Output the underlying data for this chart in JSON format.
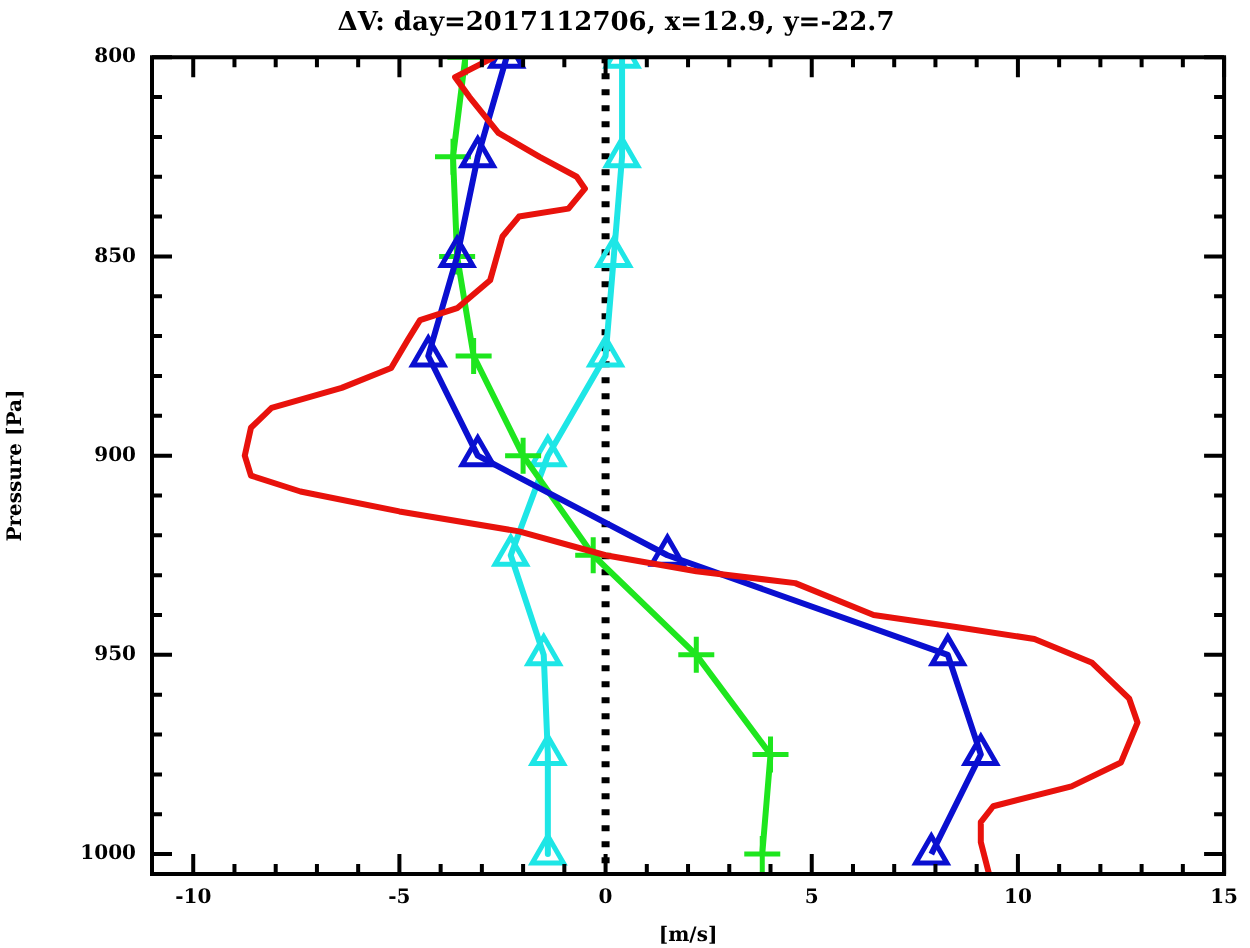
{
  "chart_data": {
    "type": "line",
    "title": "ΔV: day=2017112706, x=12.9, y=-22.7",
    "xlabel": "[m/s]",
    "ylabel": "Pressure [Pa]",
    "xlim": [
      -11,
      15
    ],
    "xticks": [
      {
        "value": -11,
        "label": null
      },
      -10,
      {
        "value": -9,
        "label": null
      },
      {
        "value": -8,
        "label": null
      },
      {
        "value": -7,
        "label": null
      },
      {
        "value": -6,
        "label": null
      },
      -5,
      {
        "value": -4,
        "label": null
      },
      {
        "value": -3,
        "label": null
      },
      {
        "value": -2,
        "label": null
      },
      {
        "value": -1,
        "label": null
      },
      0,
      {
        "value": 1,
        "label": null
      },
      {
        "value": 2,
        "label": null
      },
      {
        "value": 3,
        "label": null
      },
      {
        "value": 4,
        "label": null
      },
      5,
      {
        "value": 6,
        "label": null
      },
      {
        "value": 7,
        "label": null
      },
      {
        "value": 8,
        "label": null
      },
      {
        "value": 9,
        "label": null
      },
      10,
      {
        "value": 11,
        "label": null
      },
      {
        "value": 12,
        "label": null
      },
      {
        "value": 13,
        "label": null
      },
      {
        "value": 14,
        "label": null
      },
      15
    ],
    "ylim": [
      1005,
      800
    ],
    "yticks": [
      800,
      {
        "value": 810,
        "label": null
      },
      {
        "value": 820,
        "label": null
      },
      {
        "value": 830,
        "label": null
      },
      {
        "value": 840,
        "label": null
      },
      850,
      {
        "value": 860,
        "label": null
      },
      {
        "value": 870,
        "label": null
      },
      {
        "value": 880,
        "label": null
      },
      {
        "value": 890,
        "label": null
      },
      900,
      {
        "value": 910,
        "label": null
      },
      {
        "value": 920,
        "label": null
      },
      {
        "value": 930,
        "label": null
      },
      {
        "value": 940,
        "label": null
      },
      950,
      {
        "value": 960,
        "label": null
      },
      {
        "value": 970,
        "label": null
      },
      {
        "value": 980,
        "label": null
      },
      {
        "value": 990,
        "label": null
      },
      1000
    ],
    "grid": false,
    "legend": false,
    "line_style": "solid",
    "ref_lines": [
      {
        "axis": "x",
        "value": 0,
        "color": "#000000",
        "line_style": "dotted"
      }
    ],
    "series": [
      {
        "color": "#e8120c",
        "marker": "none",
        "x": [
          -2.7,
          -3.65,
          -3.3,
          -2.6,
          -1.6,
          -0.7,
          -0.5,
          -0.9,
          -2.1,
          -2.5,
          -2.8,
          -3.6,
          -4.5,
          -4.8,
          -5.2,
          -6.4,
          -8.1,
          -8.6,
          -8.75,
          -8.6,
          -7.4,
          -5.0,
          -2.1,
          0,
          2.2,
          4.6,
          6.5,
          8.5,
          10.4,
          11.8,
          12.7,
          12.9,
          12.5,
          11.3,
          9.4,
          9.1,
          9.1,
          9.3
        ],
        "values": [
          800,
          805,
          810,
          819,
          825,
          830,
          833,
          838,
          840,
          845,
          856,
          863,
          866,
          871,
          878,
          883,
          888,
          893,
          900,
          905,
          909,
          914,
          919,
          925,
          929,
          932,
          940,
          943,
          946,
          952,
          961,
          967,
          977,
          983,
          988,
          992,
          997,
          1005
        ]
      },
      {
        "color": "#0a0fd0",
        "marker": "triangle",
        "x": [
          -2.4,
          -3.1,
          -3.6,
          -4.3,
          -3.1,
          1.5,
          8.3,
          9.1,
          7.9
        ],
        "values": [
          800,
          825,
          850,
          875,
          900,
          925,
          950,
          975,
          1000
        ]
      },
      {
        "color": "#1ee61e",
        "marker": "cross",
        "x": [
          -3.4,
          -3.7,
          -3.6,
          -3.2,
          -2.0,
          -0.3,
          2.2,
          4.0,
          3.8
        ],
        "values": [
          800,
          825,
          850,
          875,
          900,
          925,
          950,
          975,
          1000
        ]
      },
      {
        "color": "#1ee6e6",
        "marker": "triangle",
        "x": [
          0.4,
          0.4,
          0.2,
          0,
          -1.4,
          -2.3,
          -1.5,
          -1.4,
          -1.4
        ],
        "values": [
          800,
          825,
          850,
          875,
          900,
          925,
          950,
          975,
          1000
        ]
      }
    ]
  }
}
